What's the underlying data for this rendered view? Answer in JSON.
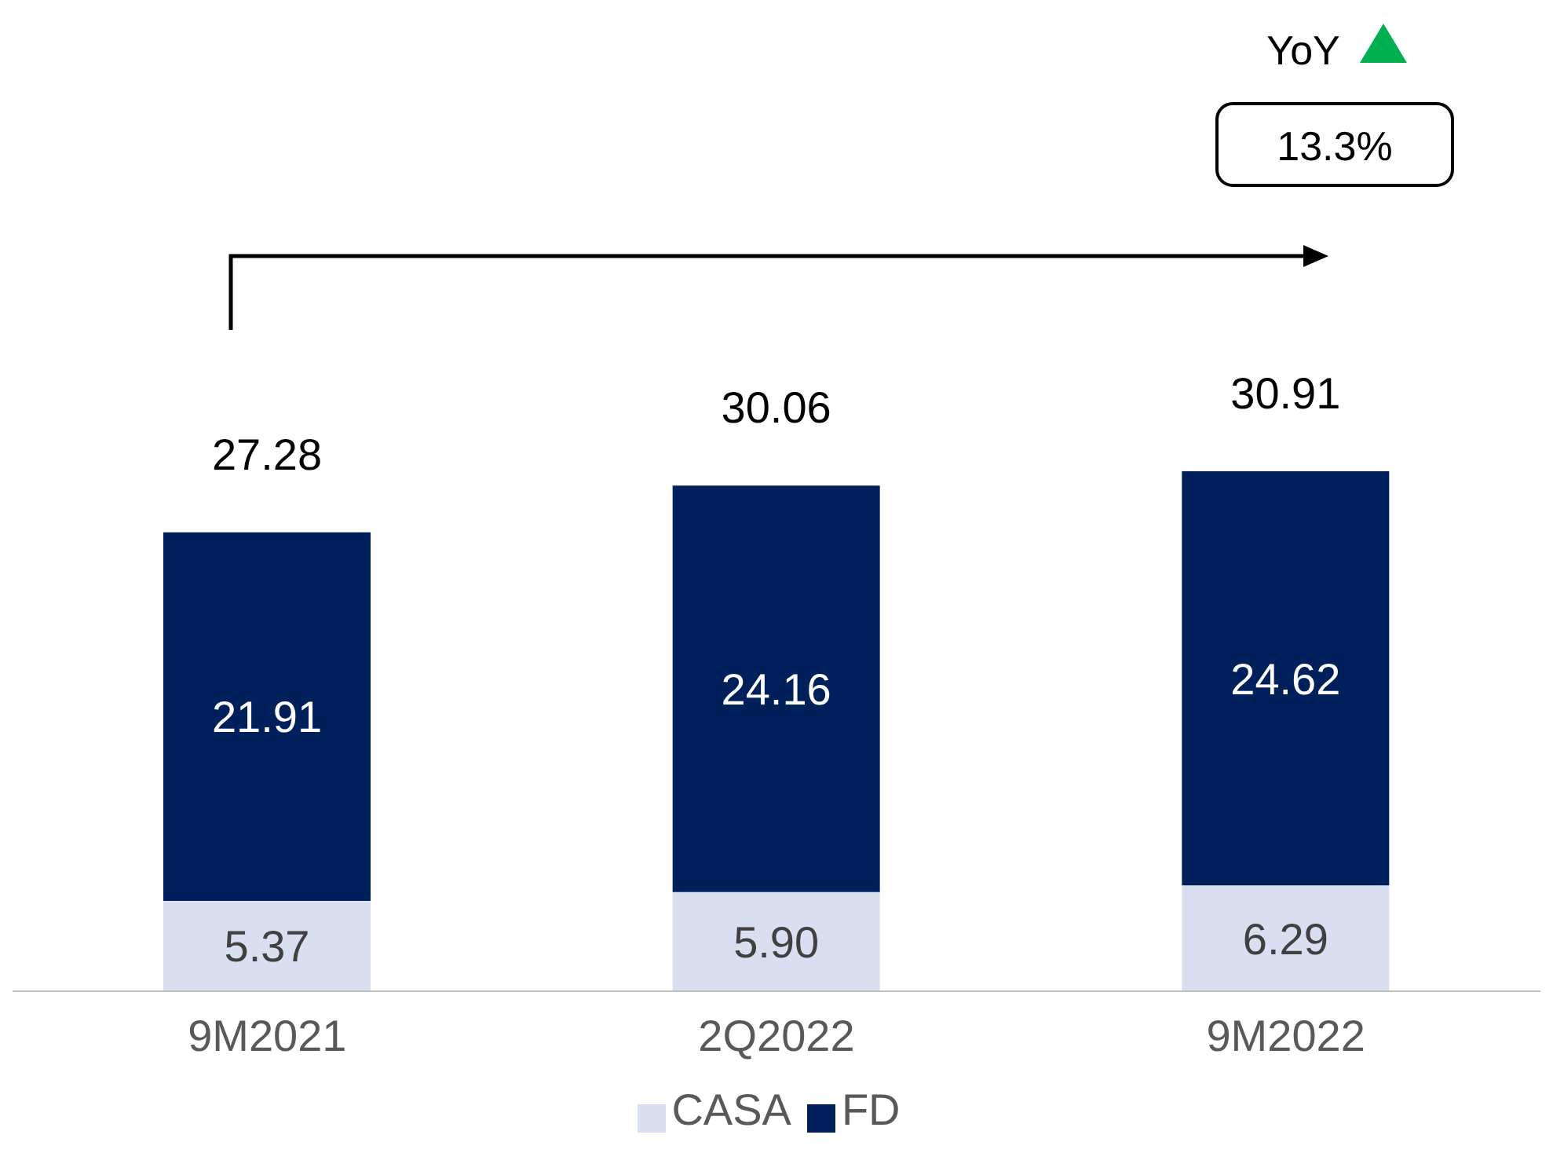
{
  "chart_data": {
    "type": "bar",
    "stacked": true,
    "categories": [
      "9M2021",
      "2Q2022",
      "9M2022"
    ],
    "series": [
      {
        "name": "CASA",
        "color": "#d9dff0",
        "values": [
          5.37,
          5.9,
          6.29
        ],
        "value_labels": [
          "5.37",
          "5.90",
          "6.29"
        ]
      },
      {
        "name": "FD",
        "color": "#00205b",
        "values": [
          21.91,
          24.16,
          24.62
        ],
        "value_labels": [
          "21.91",
          "24.16",
          "24.62"
        ]
      }
    ],
    "totals": [
      "27.28",
      "30.06",
      "30.91"
    ],
    "annotations": [
      "YoY",
      "13.3%"
    ],
    "legend": "bottom"
  }
}
